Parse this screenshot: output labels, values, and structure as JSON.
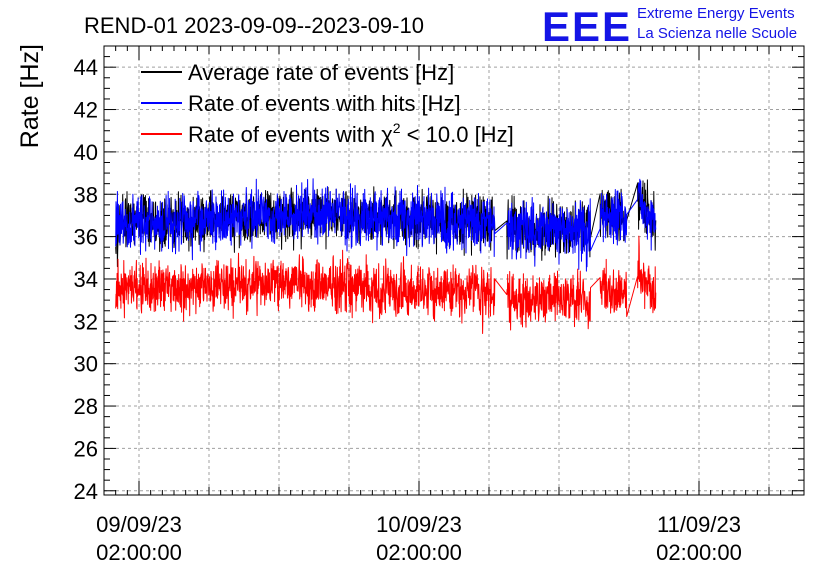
{
  "header": {
    "title": "REND-01 2023-09-09--2023-09-10",
    "logo_text": "EEE",
    "logo_line1": "Extreme Energy Events",
    "logo_line2": "La Scienza nelle Scuole"
  },
  "colors": {
    "average": "#000000",
    "hits": "#0000ff",
    "chi2": "#ff0000",
    "grid": "#a0a0a0",
    "logo": "#1414e6"
  },
  "chart_data": {
    "type": "line",
    "title": "REND-01 2023-09-09--2023-09-10",
    "ylabel": "Rate [Hz]",
    "xlabel": "",
    "ylim": [
      23.8,
      45
    ],
    "xlim_hours": [
      -3,
      57
    ],
    "grid": true,
    "legend_position": "top-left",
    "y_ticks": [
      24,
      26,
      28,
      30,
      32,
      34,
      36,
      38,
      40,
      42,
      44
    ],
    "y_tick_labels": [
      "24",
      "26",
      "28",
      "30",
      "32",
      "34",
      "36",
      "38",
      "40",
      "42",
      "44"
    ],
    "x_ticks": [
      {
        "date": "09/09/23",
        "time": "02:00:00",
        "hour": 0
      },
      {
        "date": "10/09/23",
        "time": "02:00:00",
        "hour": 24
      },
      {
        "date": "11/09/23",
        "time": "02:00:00",
        "hour": 48
      }
    ],
    "legend": {
      "average": "Average rate of events [Hz]",
      "hits": "Rate of events with hits [Hz]",
      "chi2_prefix": "Rate of events with χ",
      "chi2_sup": "2",
      "chi2_suffix": " < 10.0 [Hz]"
    },
    "series": [
      {
        "name": "Average rate of events [Hz]",
        "color": "#000000",
        "time_range_hours": [
          -2,
          44.3
        ],
        "gaps_hours": [
          [
            30.5,
            31.5
          ],
          [
            38.7,
            39.5
          ],
          [
            41.8,
            42.7
          ]
        ],
        "x": [
          -2,
          4,
          8,
          12,
          16,
          20,
          24,
          28,
          30.5,
          31.5,
          34,
          38.7,
          39.5,
          41.8,
          42.7,
          44.3
        ],
        "values": [
          36.6,
          36.6,
          36.9,
          37.0,
          37.1,
          36.9,
          36.8,
          36.7,
          36.6,
          36.5,
          36.3,
          36.3,
          37.0,
          36.9,
          38.0,
          36.5
        ],
        "noise_amplitude": 0.8
      },
      {
        "name": "Rate of events with hits [Hz]",
        "color": "#0000ff",
        "time_range_hours": [
          -2,
          44.3
        ],
        "gaps_hours": [
          [
            30.5,
            31.5
          ],
          [
            38.7,
            39.5
          ],
          [
            41.8,
            42.7
          ]
        ],
        "x": [
          -2,
          4,
          8,
          12,
          16,
          20,
          24,
          28,
          30.5,
          31.5,
          34,
          38.7,
          39.5,
          41.8,
          42.7,
          44.3
        ],
        "values": [
          36.6,
          36.6,
          36.9,
          37.0,
          37.1,
          36.9,
          36.8,
          36.7,
          36.6,
          36.5,
          36.3,
          36.3,
          37.0,
          36.9,
          38.0,
          36.5
        ],
        "noise_amplitude": 0.85
      },
      {
        "name": "Rate of events with χ2 < 10.0 [Hz]",
        "color": "#ff0000",
        "time_range_hours": [
          -2,
          44.3
        ],
        "gaps_hours": [
          [
            30.5,
            31.5
          ],
          [
            38.7,
            39.5
          ],
          [
            41.8,
            42.7
          ]
        ],
        "x": [
          -2,
          4,
          8,
          12,
          16,
          20,
          24,
          28,
          30.5,
          31.5,
          34,
          38.7,
          39.5,
          41.8,
          42.7,
          44.3
        ],
        "values": [
          33.5,
          33.5,
          33.7,
          33.8,
          33.8,
          33.6,
          33.4,
          33.3,
          33.2,
          33.1,
          33.0,
          33.0,
          33.6,
          33.4,
          34.5,
          33.0
        ],
        "noise_amplitude": 0.8
      }
    ]
  }
}
